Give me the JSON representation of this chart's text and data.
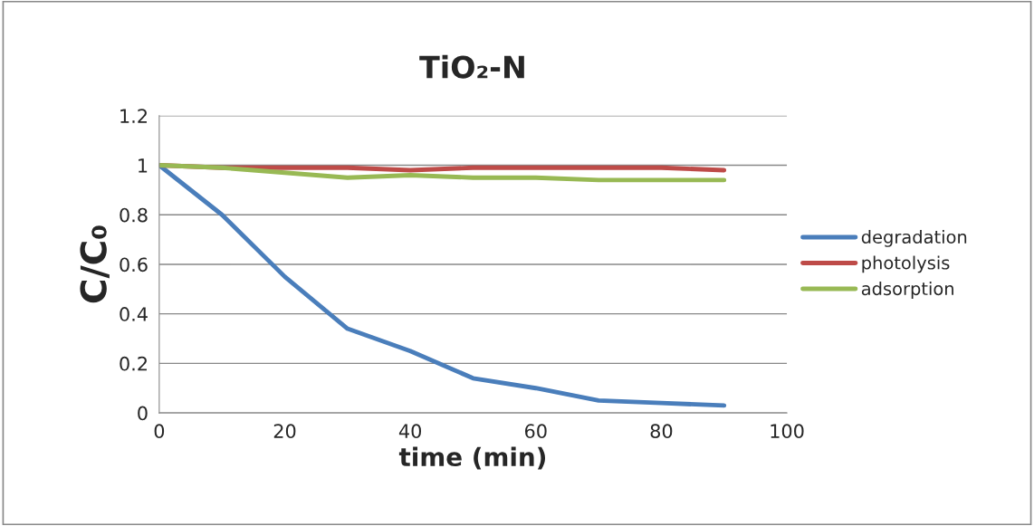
{
  "chart_data": {
    "type": "line",
    "title": "TiO₂-N",
    "xlabel": "time (min)",
    "ylabel": "C/C₀",
    "x": [
      0,
      10,
      20,
      30,
      40,
      50,
      60,
      70,
      80,
      90
    ],
    "series": [
      {
        "name": "degradation",
        "color": "#4a7ebb",
        "values": [
          1,
          0.8,
          0.55,
          0.34,
          0.25,
          0.14,
          0.1,
          0.05,
          0.04,
          0.03
        ]
      },
      {
        "name": "photolysis",
        "color": "#be4b48",
        "values": [
          1,
          0.99,
          0.99,
          0.99,
          0.98,
          0.99,
          0.99,
          0.99,
          0.99,
          0.98
        ]
      },
      {
        "name": "adsorption",
        "color": "#98b954",
        "values": [
          1,
          0.99,
          0.97,
          0.95,
          0.96,
          0.95,
          0.95,
          0.94,
          0.94,
          0.94
        ]
      }
    ],
    "xlim": [
      0,
      100
    ],
    "xticks": [
      0,
      20,
      40,
      60,
      80,
      100
    ],
    "ylim": [
      0,
      1.2
    ],
    "yticks": [
      0,
      0.2,
      0.4,
      0.6,
      0.8,
      1,
      1.2
    ],
    "grid": "y",
    "legend": "right",
    "marker": "none",
    "line_style": "solid"
  }
}
